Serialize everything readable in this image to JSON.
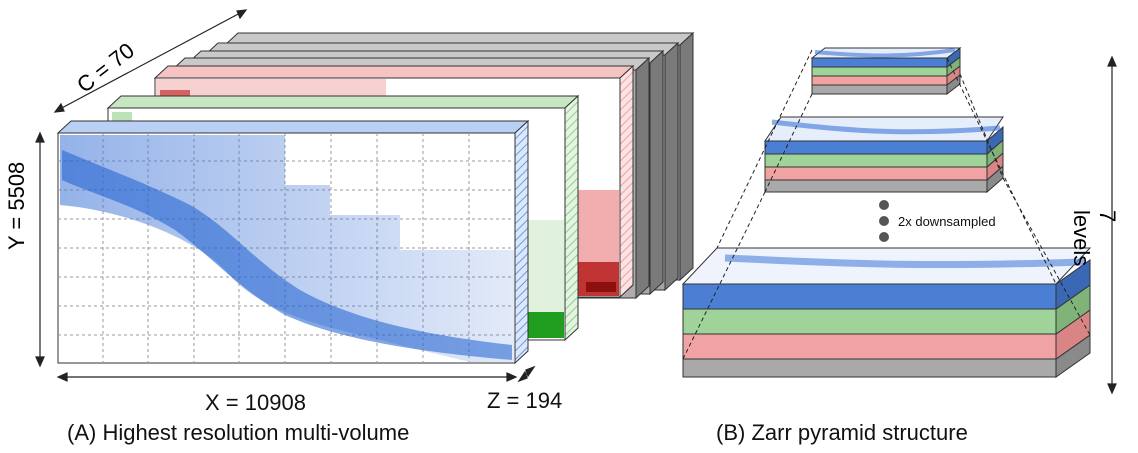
{
  "figure": {
    "panel_a": {
      "caption": "(A) Highest resolution multi-volume",
      "x_label": "X = 10908",
      "y_label": "Y = 5508",
      "z_label": "Z = 194",
      "c_label": "C = 70"
    },
    "panel_b": {
      "caption": "(B) Zarr pyramid structure",
      "downsample_label": "2x downsampled",
      "levels_label": "7 levels"
    },
    "colors": {
      "blue": "#4a7fd4",
      "green": "#9fd39a",
      "red": "#f1a3a3",
      "gray": "#a9a9a9",
      "dark_gray": "#8e8e8e"
    }
  }
}
